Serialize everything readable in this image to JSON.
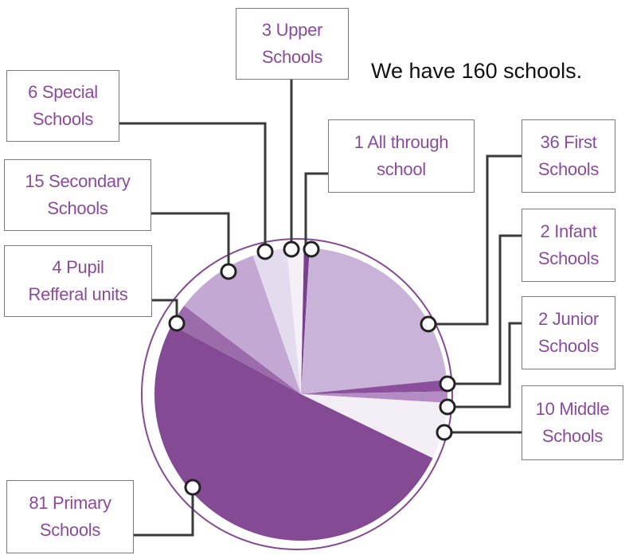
{
  "chart_data": {
    "type": "pie",
    "title": "We have 160 schools.",
    "categories": [
      "All through\nschool",
      "First\nSchools",
      "Infant\nSchools",
      "Junior\nSchools",
      "Middle\nSchools",
      "Primary\nSchools",
      "Pupil\nRefferal units",
      "Secondary\nSchools",
      "Special\nSchools",
      "Upper\nSchools"
    ],
    "values": [
      1,
      36,
      2,
      2,
      10,
      81,
      4,
      15,
      6,
      3
    ],
    "colors": [
      "#7b3f8f",
      "#c9b3d9",
      "#8b4f9e",
      "#b48cc4",
      "#f3eef6",
      "#844a94",
      "#9c6bac",
      "#c2a8d3",
      "#e5dbee",
      "#f5f0f8"
    ]
  }
}
